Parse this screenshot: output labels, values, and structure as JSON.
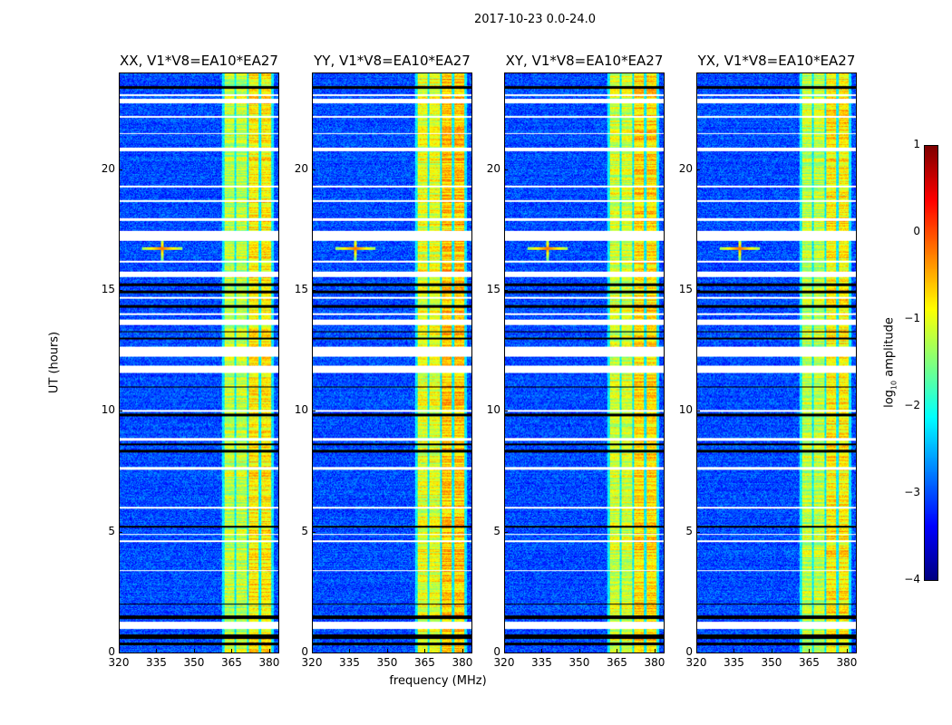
{
  "chart_data": {
    "type": "heatmap",
    "title": "2017-10-23 0.0-24.0",
    "xlabel": "frequency (MHz)",
    "ylabel": "UT (hours)",
    "xlim": [
      320,
      384
    ],
    "ylim": [
      0,
      24
    ],
    "xticks": [
      "320",
      "335",
      "350",
      "365",
      "380"
    ],
    "xtick_values": [
      320,
      335,
      350,
      365,
      380
    ],
    "yticks": [
      "0",
      "5",
      "10",
      "15",
      "20"
    ],
    "ytick_values": [
      0,
      5,
      10,
      15,
      20
    ],
    "colormap": "jet",
    "colorbar": {
      "label": "log10 amplitude",
      "label_main": "log",
      "label_sub": "10",
      "label_rest": " amplitude",
      "range": [
        -4,
        1
      ],
      "ticks": [
        "1",
        "0",
        "−1",
        "−2",
        "−3",
        "−4"
      ],
      "tick_values": [
        1,
        0,
        -1,
        -2,
        -3,
        -4
      ]
    },
    "panels": [
      {
        "title": "XX, V1*V8=EA10*EA27",
        "band_level": -1.2
      },
      {
        "title": "YY, V1*V8=EA10*EA27",
        "band_level": -1.0
      },
      {
        "title": "XY, V1*V8=EA10*EA27",
        "band_level": -1.1
      },
      {
        "title": "YX, V1*V8=EA10*EA27",
        "band_level": -1.2
      }
    ],
    "background_level": -3.0,
    "bright_band_mhz": [
      [
        362,
        366
      ],
      [
        367,
        371
      ],
      [
        372,
        376
      ],
      [
        377,
        381
      ]
    ],
    "rfi_spike": {
      "freq_mhz": 337,
      "ut_hours": 16.75
    },
    "flagged_hours": [
      [
        1.0,
        1.3
      ],
      [
        3.4,
        3.45
      ],
      [
        4.6,
        4.65
      ],
      [
        4.9,
        4.95
      ],
      [
        6.0,
        6.05
      ],
      [
        7.6,
        7.7
      ],
      [
        8.8,
        8.9
      ],
      [
        10.0,
        10.05
      ],
      [
        11.6,
        11.9
      ],
      [
        12.3,
        12.7
      ],
      [
        13.6,
        13.8
      ],
      [
        14.0,
        14.1
      ],
      [
        14.7,
        14.75
      ],
      [
        15.6,
        15.8
      ],
      [
        16.2,
        16.25
      ],
      [
        17.1,
        17.5
      ],
      [
        17.9,
        18.0
      ],
      [
        18.7,
        18.75
      ],
      [
        19.3,
        19.35
      ],
      [
        20.8,
        20.95
      ],
      [
        21.5,
        21.55
      ],
      [
        22.2,
        22.25
      ],
      [
        22.8,
        22.95
      ],
      [
        23.1,
        23.15
      ]
    ],
    "dead_hours": [
      [
        0.3,
        0.45
      ],
      [
        0.6,
        0.75
      ],
      [
        1.4,
        1.55
      ],
      [
        2.0,
        2.05
      ],
      [
        5.2,
        5.25
      ],
      [
        8.3,
        8.4
      ],
      [
        8.6,
        8.7
      ],
      [
        9.8,
        9.9
      ],
      [
        11.0,
        11.05
      ],
      [
        13.0,
        13.05
      ],
      [
        13.3,
        13.35
      ],
      [
        14.3,
        14.4
      ],
      [
        14.9,
        15.0
      ],
      [
        15.2,
        15.3
      ],
      [
        23.4,
        23.5
      ]
    ]
  }
}
